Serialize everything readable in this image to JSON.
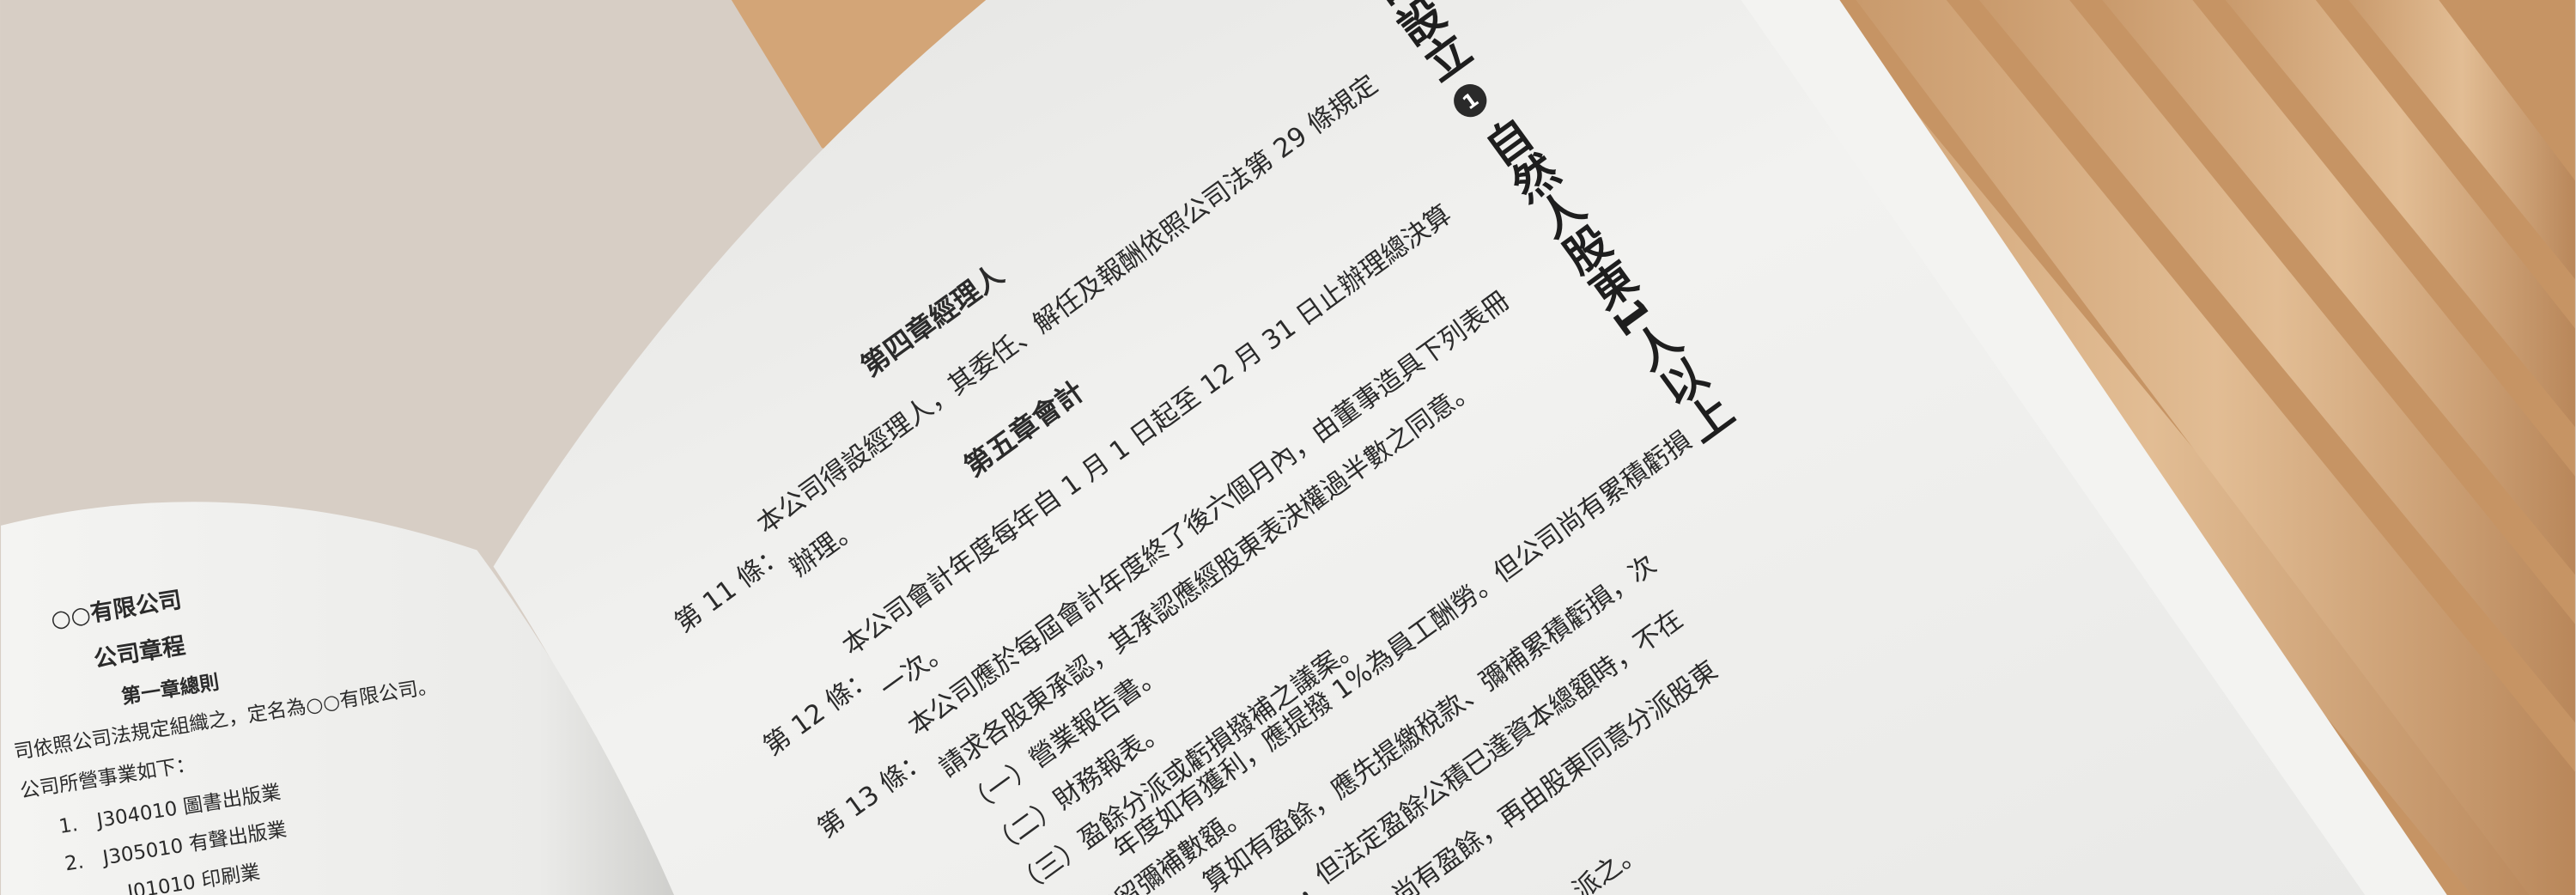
{
  "header": {
    "section_fragment": "司設立",
    "marker": "1",
    "title": "自然人股東1人以上"
  },
  "left_page": {
    "company": "○○有限公司",
    "title": "公司章程",
    "chapter": "第一章總則",
    "lines": [
      "司依照公司法規定組織之，定名為○○有限公司。",
      "公司所營事業如下：",
      "1.　J304010 圖書出版業",
      "2.　J305010 有聲出版業",
      "J01010 印刷業"
    ]
  },
  "right_page": {
    "chapter_4": "第四章經理人",
    "article_11": {
      "label": "第 11 條：",
      "lines": [
        "本公司得設經理人，其委任、解任及報酬依照公司法第 29 條規定",
        "辦理。"
      ]
    },
    "chapter_5": "第五章會計",
    "article_12": {
      "label": "第 12 條：",
      "lines": [
        "本公司會計年度每年自 1 月 1 日起至 12 月 31 日止辦理總決算",
        "一次。"
      ]
    },
    "article_13": {
      "label": "第 13 條：",
      "lines": [
        "本公司應於每屆會計年度終了後六個月內，由董事造具下列表冊",
        "請求各股東承認，其承認應經股東表決權過半數之同意。",
        "（一）營業報告書。",
        "（二）財務報表。",
        "（三）盈餘分派或虧損撥補之議案。"
      ]
    },
    "continuation": [
      "年度如有獲利，應提撥 1%為員工酬勞。但公司尚有累積虧損",
      "保留彌補數額。",
      "算如有盈餘，應先提繳稅款、彌補累積虧損，次",
      "，但法定盈餘公積已達資本總額時，不在",
      "尚有盈餘，再由股東同意分派股東",
      "派之。"
    ]
  }
}
